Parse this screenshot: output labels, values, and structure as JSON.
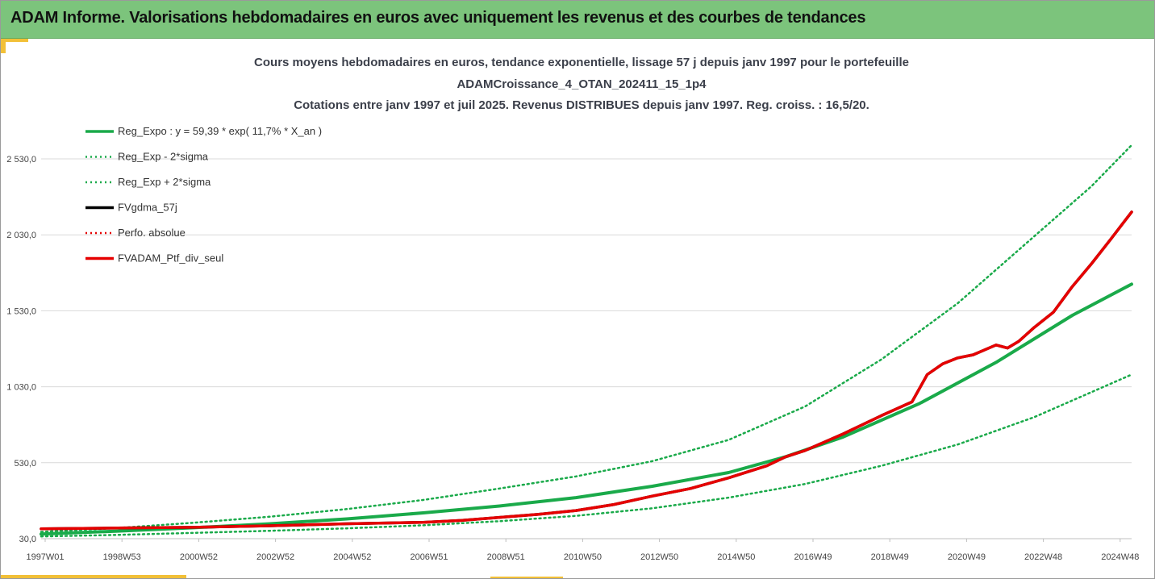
{
  "header": {
    "title": "ADAM Informe. Valorisations hebdomadaires en euros avec uniquement les revenus et des courbes de tendances"
  },
  "colors": {
    "banner": "#7cc47c",
    "accent": "#f2c037",
    "trend": "#1aaa4a",
    "avg57": "#000000",
    "perf": "#e60000"
  },
  "chart_data": {
    "type": "line",
    "title_lines": [
      "Cours moyens hebdomadaires  en euros, tendance exponentielle, lissage 57 j depuis janv 1997 pour le portefeuille",
      "ADAMCroissance_4_OTAN_202411_15_1p4",
      "Cotations  entre janv 1997 et juil 2025. Revenus DISTRIBUES depuis janv 1997. Reg. croiss. : 16,5/20."
    ],
    "xlabel": "",
    "ylabel": "",
    "x_tick_labels": [
      "1997W01",
      "1998W53",
      "2000W52",
      "2002W52",
      "2004W52",
      "2006W51",
      "2008W51",
      "2010W50",
      "2012W50",
      "2014W50",
      "2016W49",
      "2018W49",
      "2020W49",
      "2022W48",
      "2024W48"
    ],
    "y_tick_labels": [
      "30,0",
      "530,0",
      "1 030,0",
      "1 530,0",
      "2 030,0",
      "2 530,0"
    ],
    "y_ticks": [
      30,
      530,
      1030,
      1530,
      2030,
      2530
    ],
    "ylim": [
      30,
      2790
    ],
    "xlim": [
      1997.0,
      2025.55
    ],
    "grid": true,
    "legend_position": "top-left",
    "legend": [
      {
        "label": "Reg_Expo : y = 59,39 * exp( 11,7% *  X_an )",
        "style": "solid",
        "color": "#1aaa4a"
      },
      {
        "label": "Reg_Exp - 2*sigma",
        "style": "dotted",
        "color": "#1aaa4a"
      },
      {
        "label": "Reg_Exp + 2*sigma",
        "style": "dotted",
        "color": "#1aaa4a"
      },
      {
        "label": "FVgdma_57j",
        "style": "solid",
        "color": "#000000"
      },
      {
        "label": "Perfo. absolue",
        "style": "dotted",
        "color": "#e60000"
      },
      {
        "label": "FVADAM_Ptf_div_seul",
        "style": "solid",
        "color": "#e60000"
      }
    ],
    "series": [
      {
        "name": "Reg_Expo : y = 59,39 * exp( 11,7% *  X_an )",
        "x": [
          1997.0,
          1999.0,
          2001.0,
          2003.0,
          2005.0,
          2007.0,
          2009.0,
          2011.0,
          2013.0,
          2015.0,
          2016.5,
          2018.0,
          2020.0,
          2022.0,
          2024.0,
          2025.55
        ],
        "y": [
          60,
          80,
          102,
          128,
          160,
          200,
          245,
          300,
          375,
          465,
          570,
          700,
          920,
          1190,
          1500,
          1705
        ]
      },
      {
        "name": "Reg_Exp - 2*sigma",
        "x": [
          1997.0,
          1999.0,
          2001.0,
          2003.0,
          2005.0,
          2007.0,
          2009.0,
          2011.0,
          2013.0,
          2015.0,
          2017.0,
          2019.0,
          2021.0,
          2023.0,
          2025.55
        ],
        "y": [
          45,
          55,
          68,
          82,
          98,
          118,
          145,
          180,
          230,
          300,
          390,
          510,
          650,
          830,
          1110
        ]
      },
      {
        "name": "Reg_Exp + 2*sigma",
        "x": [
          1997.0,
          1999.0,
          2001.0,
          2003.0,
          2005.0,
          2007.0,
          2009.0,
          2011.0,
          2013.0,
          2015.0,
          2017.0,
          2019.0,
          2021.0,
          2023.0,
          2024.5,
          2025.55
        ],
        "y": [
          75,
          100,
          135,
          175,
          225,
          285,
          360,
          440,
          540,
          680,
          900,
          1210,
          1580,
          2020,
          2350,
          2620
        ]
      },
      {
        "name": "FVgdma_57j",
        "x": [
          1997.0,
          1999.0,
          2001.0,
          2003.0,
          2005.0,
          2007.0,
          2008.0,
          2009.0,
          2010.0,
          2011.0,
          2012.0,
          2013.0,
          2014.0,
          2015.0,
          2016.0,
          2016.5,
          2017.0,
          2018.0,
          2019.0,
          2019.8,
          2020.2,
          2020.6,
          2021.0,
          2021.4,
          2022.0,
          2022.3,
          2022.6,
          2023.0,
          2023.5,
          2024.0,
          2024.5,
          2025.0,
          2025.55
        ],
        "y": [
          95,
          100,
          105,
          115,
          128,
          138,
          150,
          170,
          190,
          215,
          255,
          310,
          360,
          430,
          510,
          570,
          610,
          720,
          840,
          930,
          1110,
          1180,
          1220,
          1240,
          1305,
          1285,
          1330,
          1420,
          1520,
          1690,
          1840,
          2000,
          2180
        ]
      },
      {
        "name": "Perfo. absolue",
        "x": [
          1997.0,
          1999.0,
          2001.0,
          2003.0,
          2005.0,
          2007.0,
          2008.0,
          2009.0,
          2010.0,
          2011.0,
          2012.0,
          2013.0,
          2014.0,
          2015.0,
          2016.0,
          2016.5,
          2017.0,
          2018.0,
          2019.0,
          2019.8,
          2020.2,
          2020.6,
          2021.0,
          2021.4,
          2022.0,
          2022.3,
          2022.6,
          2023.0,
          2023.5,
          2024.0,
          2024.5,
          2025.0,
          2025.55
        ],
        "y": [
          95,
          100,
          105,
          115,
          128,
          138,
          150,
          170,
          190,
          215,
          255,
          310,
          360,
          430,
          510,
          570,
          610,
          720,
          840,
          930,
          1110,
          1180,
          1220,
          1240,
          1305,
          1285,
          1330,
          1420,
          1520,
          1690,
          1840,
          2000,
          2180
        ]
      },
      {
        "name": "FVADAM_Ptf_div_seul",
        "x": [
          1997.0,
          1999.0,
          2001.0,
          2003.0,
          2005.0,
          2007.0,
          2008.0,
          2009.0,
          2010.0,
          2011.0,
          2012.0,
          2013.0,
          2014.0,
          2015.0,
          2016.0,
          2016.5,
          2017.0,
          2018.0,
          2019.0,
          2019.8,
          2020.2,
          2020.6,
          2021.0,
          2021.4,
          2022.0,
          2022.3,
          2022.6,
          2023.0,
          2023.5,
          2024.0,
          2024.5,
          2025.0,
          2025.55
        ],
        "y": [
          95,
          100,
          105,
          115,
          128,
          138,
          150,
          170,
          190,
          215,
          255,
          310,
          360,
          430,
          510,
          570,
          610,
          720,
          840,
          930,
          1110,
          1180,
          1220,
          1240,
          1305,
          1285,
          1330,
          1420,
          1520,
          1690,
          1840,
          2000,
          2180
        ]
      }
    ]
  }
}
